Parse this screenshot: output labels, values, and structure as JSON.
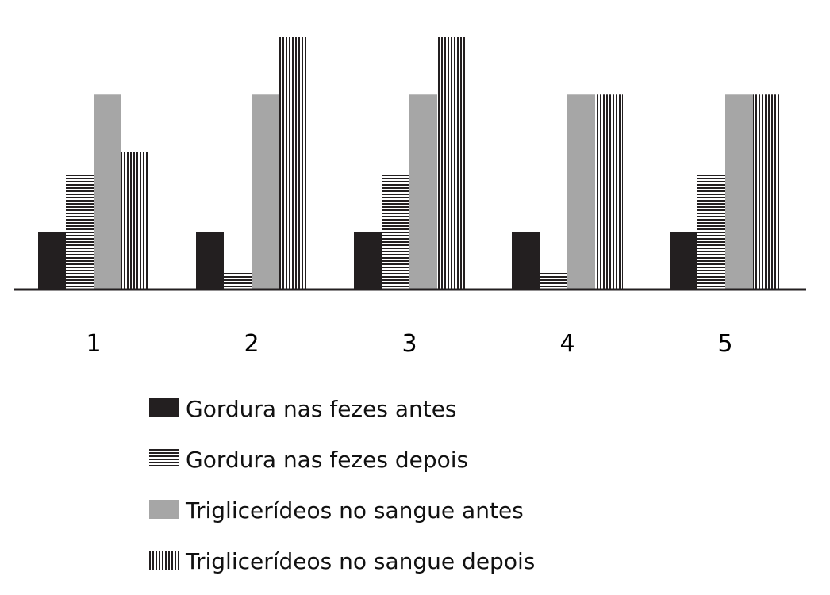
{
  "chart_data": {
    "type": "bar",
    "title": "",
    "xlabel": "",
    "ylabel": "",
    "categories": [
      "1",
      "2",
      "3",
      "4",
      "5"
    ],
    "series": [
      {
        "name": "Gordura nas fezes antes",
        "values": [
          1,
          1,
          1,
          1,
          1
        ],
        "pattern": "solid-black",
        "color": "#231f20"
      },
      {
        "name": "Gordura nas fezes depois",
        "values": [
          2,
          0.3,
          2,
          0.3,
          2
        ],
        "pattern": "horizontal-stripes",
        "color": "#231f20"
      },
      {
        "name": "Triglicerídeos no sangue antes",
        "values": [
          3.4,
          3.4,
          3.4,
          3.4,
          3.4
        ],
        "pattern": "solid-gray",
        "color": "#a6a6a6"
      },
      {
        "name": "Triglicerídeos no sangue depois",
        "values": [
          2.4,
          4.4,
          4.4,
          3.4,
          3.4
        ],
        "pattern": "vertical-stripes",
        "color": "#231f20"
      }
    ],
    "ylim": [
      0,
      4.4
    ],
    "grid": false,
    "legend_position": "bottom"
  }
}
